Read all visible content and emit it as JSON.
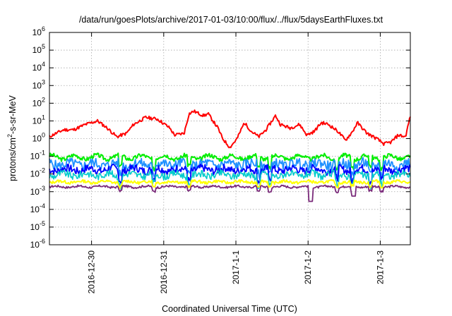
{
  "chart_data": {
    "type": "line",
    "title": "/data/run/goesPlots/archive/2017-01-03/10:00/flux/../flux/5daysEarthFluxes.txt",
    "xlabel": "Coordinated Universal Time (UTC)",
    "ylabel": {
      "pre": "protons/cm",
      "sup": "2",
      "post": "-s-sr-MeV"
    },
    "y_scale": "log",
    "ylim_exp": [
      -6,
      6
    ],
    "y_tick_exponents": [
      -6,
      -5,
      -4,
      -3,
      -2,
      -1,
      0,
      1,
      2,
      3,
      4,
      5,
      6
    ],
    "y_tick_base": "10",
    "x_range_days_label": "2016-12-29 10:00 to 2017-01-03 10:00",
    "x_ticks": [
      "2016-12-30",
      "2016-12-31",
      "2017-1-1",
      "2017-1-2",
      "2017-1-3"
    ],
    "grid": true,
    "series": [
      {
        "color": "#ff0000",
        "log_level": 0.35,
        "amp": 0.55,
        "noise": 0.18,
        "seed": 11,
        "width": 2.0,
        "keypoints": [
          [
            0.0,
            0.1
          ],
          [
            0.02,
            0.25
          ],
          [
            0.06,
            0.5
          ],
          [
            0.1,
            0.5
          ],
          [
            0.15,
            0.8
          ],
          [
            0.2,
            1.0
          ],
          [
            0.24,
            0.6
          ],
          [
            0.28,
            0.1
          ],
          [
            0.32,
            0.3
          ],
          [
            0.35,
            0.8
          ],
          [
            0.4,
            1.2
          ],
          [
            0.45,
            1.1
          ],
          [
            0.5,
            0.6
          ],
          [
            0.52,
            0.2
          ],
          [
            0.56,
            0.3
          ],
          [
            0.58,
            1.4
          ],
          [
            0.6,
            1.55
          ],
          [
            0.64,
            1.3
          ],
          [
            0.66,
            1.4
          ],
          [
            0.68,
            1.0
          ],
          [
            0.7,
            0.6
          ],
          [
            0.72,
            0.0
          ],
          [
            0.75,
            -0.5
          ],
          [
            0.78,
            0.0
          ],
          [
            0.81,
            0.9
          ],
          [
            0.84,
            0.4
          ],
          [
            0.87,
            0.1
          ],
          [
            0.9,
            0.5
          ],
          [
            0.94,
            1.3
          ],
          [
            0.96,
            0.8
          ],
          [
            1.0,
            0.6
          ],
          [
            1.04,
            0.8
          ],
          [
            1.07,
            0.2
          ],
          [
            1.1,
            0.4
          ],
          [
            1.13,
            0.9
          ],
          [
            1.16,
            0.8
          ],
          [
            1.2,
            0.4
          ],
          [
            1.23,
            -0.1
          ],
          [
            1.26,
            0.4
          ],
          [
            1.28,
            0.9
          ],
          [
            1.32,
            0.3
          ],
          [
            1.36,
            0.0
          ],
          [
            1.39,
            -0.3
          ],
          [
            1.42,
            -0.2
          ],
          [
            1.45,
            0.2
          ],
          [
            1.48,
            0.1
          ],
          [
            1.5,
            1.3
          ]
        ]
      },
      {
        "color": "#00ee00",
        "log_level": -1.05,
        "amp": 0.12,
        "noise": 0.12,
        "seed": 3,
        "width": 2.0,
        "keypoints": []
      },
      {
        "color": "#1e90ff",
        "log_level": -1.45,
        "amp": 0.1,
        "noise": 0.28,
        "seed": 5,
        "width": 1.8,
        "keypoints": []
      },
      {
        "color": "#0000ff",
        "log_level": -1.75,
        "amp": 0.1,
        "noise": 0.22,
        "seed": 7,
        "width": 1.8,
        "keypoints": []
      },
      {
        "color": "#00cccc",
        "log_level": -2.05,
        "amp": 0.1,
        "noise": 0.2,
        "seed": 9,
        "width": 1.6,
        "keypoints": []
      },
      {
        "color": "#ffff00",
        "log_level": -2.45,
        "amp": 0.05,
        "noise": 0.08,
        "seed": 13,
        "width": 2.0,
        "keypoints": []
      },
      {
        "color": "#7a2a7a",
        "log_level": -2.72,
        "amp": 0.04,
        "noise": 0.06,
        "seed": 17,
        "width": 1.8,
        "keypoints": []
      }
    ]
  }
}
